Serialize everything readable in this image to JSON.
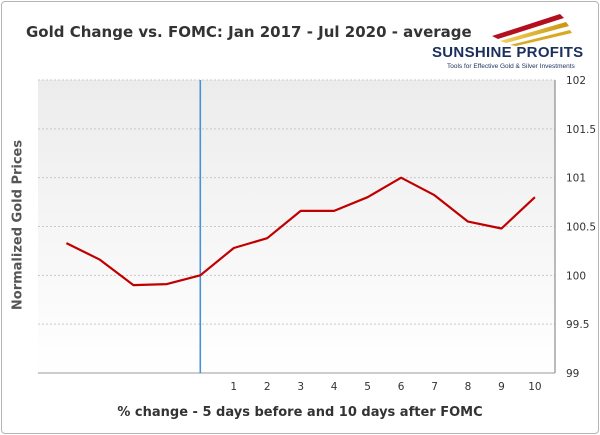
{
  "chart_data": {
    "type": "line",
    "title": "Gold Change vs. FOMC: Jan 2017 - Jul 2020 - average",
    "xlabel": "% change - 5 days before and 10 days after FOMC",
    "ylabel": "Normalized Gold Prices",
    "x": [
      -4,
      -3,
      -2,
      -1,
      0,
      1,
      2,
      3,
      4,
      5,
      6,
      7,
      8,
      9,
      10
    ],
    "x_tick_labels": [
      "1",
      "2",
      "3",
      "4",
      "5",
      "6",
      "7",
      "8",
      "9",
      "10"
    ],
    "x_ticks": [
      1,
      2,
      3,
      4,
      5,
      6,
      7,
      8,
      9,
      10
    ],
    "xlim": [
      -4.85,
      10.6
    ],
    "ylim": [
      99,
      102
    ],
    "y_ticks": [
      99,
      99.5,
      100,
      100.5,
      101,
      101.5,
      102
    ],
    "y_tick_labels": [
      "99",
      "99.5",
      "100",
      "100.5",
      "101",
      "101.5",
      "102"
    ],
    "y_axis_side": "right",
    "series": [
      {
        "values": [
          100.33,
          100.16,
          99.9,
          99.91,
          100.0,
          100.28,
          100.38,
          100.66,
          100.66,
          100.8,
          101.0,
          100.82,
          100.55,
          100.48,
          100.8
        ],
        "color": "#c00000"
      }
    ],
    "vertical_marker": {
      "x": 0,
      "color": "#4a90d9"
    },
    "grid": true,
    "grid_color": "#c8c8c8",
    "background_gradient": [
      "#ececec",
      "#ffffff"
    ]
  },
  "logo": {
    "name": "SUNSHINE PROFITS",
    "tagline": "Tools for Effective Gold & Silver Investments"
  }
}
